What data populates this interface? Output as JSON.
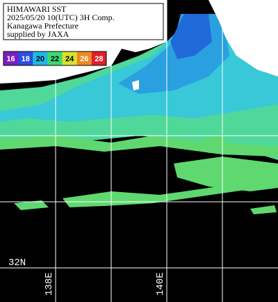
{
  "header": {
    "lines": [
      "HIMAWARI SST",
      "2025/05/20 10(UTC) 3H Comp.",
      "Kanagawa Prefecture",
      "supplied by JAXA"
    ]
  },
  "colorbar": {
    "labels": [
      "16",
      "18",
      "20",
      "22",
      "24",
      "26",
      "28"
    ],
    "colors": [
      "#7a1fc0",
      "#2a4ee0",
      "#1fb8e8",
      "#3fd870",
      "#d8e030",
      "#f08a20",
      "#e0202a"
    ]
  },
  "grid": {
    "lat_labels": [
      "32N"
    ],
    "lon_labels": [
      "138E",
      "140E"
    ]
  }
}
